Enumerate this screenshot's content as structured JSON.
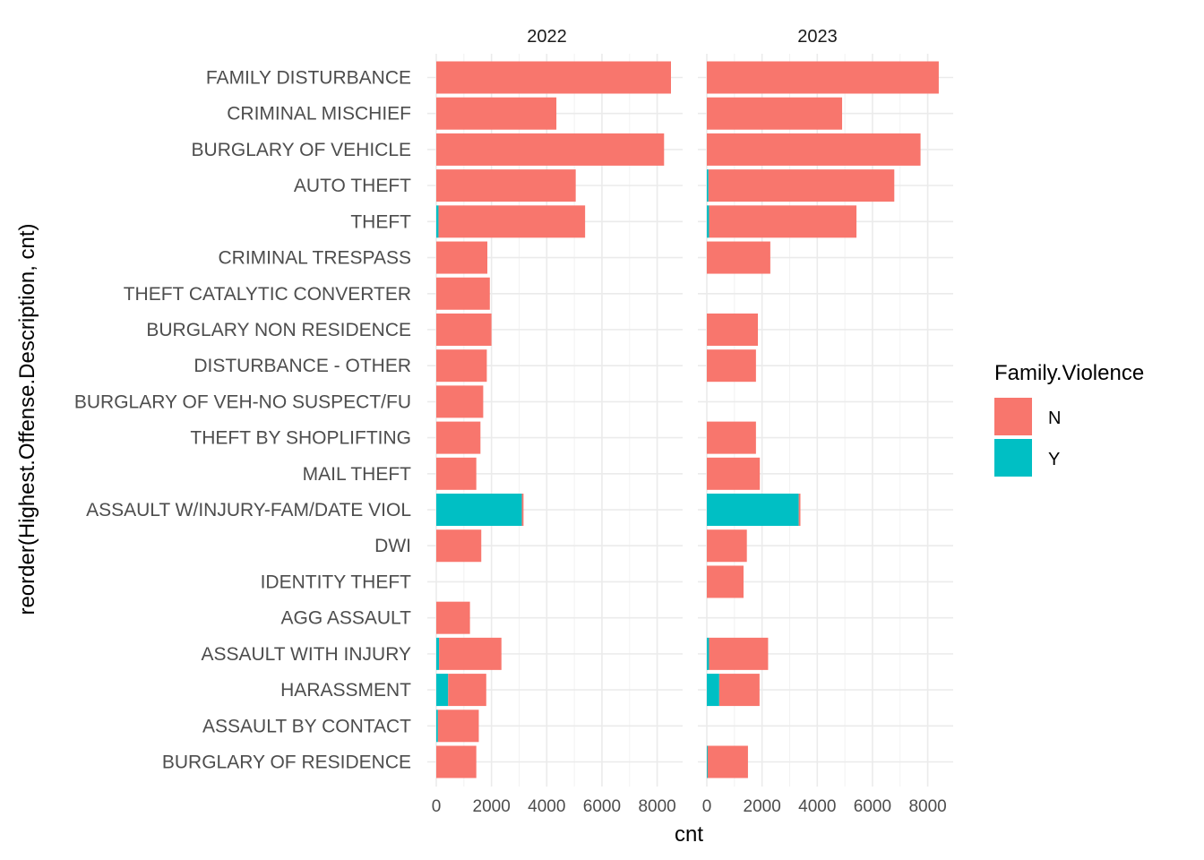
{
  "chart_data": {
    "type": "bar",
    "orientation": "horizontal",
    "stacked": true,
    "facets": [
      "2022",
      "2023"
    ],
    "categories": [
      "FAMILY DISTURBANCE",
      "CRIMINAL MISCHIEF",
      "BURGLARY OF VEHICLE",
      "AUTO THEFT",
      "THEFT",
      "CRIMINAL TRESPASS",
      "THEFT CATALYTIC CONVERTER",
      "BURGLARY NON RESIDENCE",
      "DISTURBANCE - OTHER",
      "BURGLARY OF VEH-NO SUSPECT/FU",
      "THEFT BY SHOPLIFTING",
      "MAIL THEFT",
      "ASSAULT W/INJURY-FAM/DATE VIOL",
      "DWI",
      "IDENTITY THEFT",
      "AGG ASSAULT",
      "ASSAULT WITH INJURY",
      "HARASSMENT",
      "ASSAULT BY CONTACT",
      "BURGLARY OF RESIDENCE"
    ],
    "series": [
      {
        "name": "N",
        "color": "#F8766D",
        "values": {
          "2022": [
            8500,
            4350,
            8250,
            5050,
            5310,
            1850,
            1940,
            2000,
            1830,
            1700,
            1600,
            1450,
            60,
            1630,
            0,
            1220,
            2260,
            1380,
            1480,
            1450
          ],
          "2023": [
            8400,
            4900,
            7740,
            6730,
            5340,
            2300,
            0,
            1850,
            1780,
            0,
            1780,
            1920,
            60,
            1450,
            1330,
            0,
            2140,
            1460,
            0,
            1460
          ]
        }
      },
      {
        "name": "Y",
        "color": "#00BFC4",
        "values": {
          "2022": [
            0,
            0,
            0,
            0,
            80,
            0,
            0,
            0,
            0,
            0,
            0,
            0,
            3100,
            0,
            0,
            0,
            100,
            430,
            60,
            0
          ],
          "2023": [
            0,
            0,
            0,
            60,
            80,
            0,
            0,
            0,
            0,
            0,
            0,
            0,
            3330,
            0,
            0,
            0,
            80,
            450,
            0,
            30
          ]
        }
      }
    ],
    "xlabel": "cnt",
    "ylabel": "reorder(Highest.Offense.Description, cnt)",
    "xticks": [
      0,
      2000,
      4000,
      6000,
      8000
    ],
    "xlim": [
      -300,
      8800
    ],
    "grid": true,
    "legend": {
      "title": "Family.Violence",
      "position": "right"
    }
  }
}
